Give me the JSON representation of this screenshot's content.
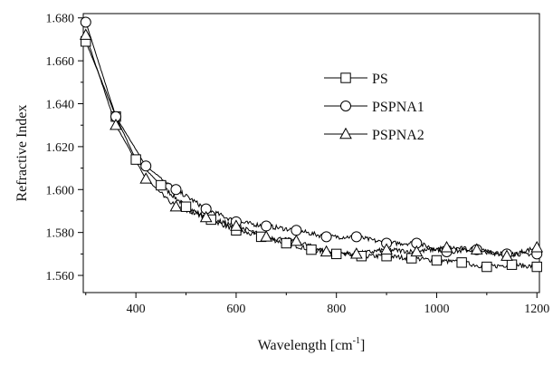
{
  "chart_data": {
    "type": "line",
    "title": "",
    "xlabel": "Wavelength [cm",
    "xlabel_sup": "-1",
    "xlabel_suffix": "]",
    "ylabel": "Refractive Index",
    "xlim": [
      295,
      1205
    ],
    "ylim": [
      1.552,
      1.682
    ],
    "xticks": [
      400,
      600,
      800,
      1000,
      1200
    ],
    "xtick_labels": [
      "400",
      "600",
      "800",
      "1000",
      "1200"
    ],
    "yticks": [
      1.56,
      1.58,
      1.6,
      1.62,
      1.64,
      1.66,
      1.68
    ],
    "ytick_labels": [
      "1.560",
      "1.580",
      "1.600",
      "1.620",
      "1.640",
      "1.660",
      "1.680"
    ],
    "grid": false,
    "legend_position": "top-right",
    "series": [
      {
        "name": "PS",
        "marker": "square",
        "x": [
          300,
          360,
          400,
          450,
          500,
          550,
          600,
          650,
          700,
          750,
          800,
          850,
          900,
          950,
          1000,
          1050,
          1100,
          1150,
          1200
        ],
        "values": [
          1.669,
          1.634,
          1.614,
          1.602,
          1.592,
          1.586,
          1.581,
          1.578,
          1.575,
          1.572,
          1.57,
          1.569,
          1.569,
          1.568,
          1.567,
          1.566,
          1.564,
          1.565,
          1.564
        ]
      },
      {
        "name": "PSPNA1",
        "marker": "circle",
        "x": [
          300,
          360,
          420,
          480,
          540,
          600,
          660,
          720,
          780,
          840,
          900,
          960,
          1020,
          1080,
          1140,
          1200
        ],
        "values": [
          1.678,
          1.634,
          1.611,
          1.6,
          1.591,
          1.585,
          1.583,
          1.581,
          1.578,
          1.578,
          1.575,
          1.575,
          1.571,
          1.572,
          1.57,
          1.57
        ]
      },
      {
        "name": "PSPNA2",
        "marker": "triangle",
        "x": [
          300,
          360,
          420,
          480,
          540,
          600,
          660,
          720,
          780,
          840,
          900,
          960,
          1020,
          1080,
          1140,
          1200
        ],
        "values": [
          1.672,
          1.63,
          1.605,
          1.592,
          1.587,
          1.583,
          1.578,
          1.576,
          1.571,
          1.57,
          1.572,
          1.571,
          1.573,
          1.572,
          1.569,
          1.573
        ]
      }
    ]
  }
}
